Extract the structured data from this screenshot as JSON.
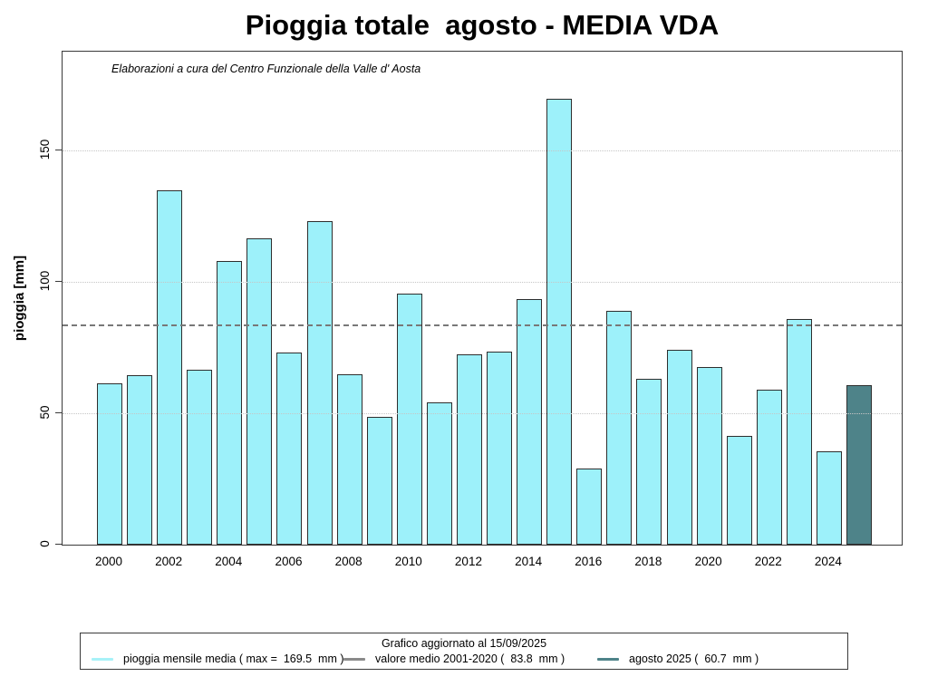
{
  "title": "Pioggia totale  agosto - MEDIA VDA",
  "subtitle": "Elaborazioni a cura del Centro Funzionale della Valle d' Aosta",
  "chart_data": {
    "type": "bar",
    "title": "Pioggia totale  agosto - MEDIA VDA",
    "subtitle": "Elaborazioni a cura del Centro Funzionale della Valle d' Aosta",
    "categories": [
      2000,
      2001,
      2002,
      2003,
      2004,
      2005,
      2006,
      2007,
      2008,
      2009,
      2010,
      2011,
      2012,
      2013,
      2014,
      2015,
      2016,
      2017,
      2018,
      2019,
      2020,
      2021,
      2022,
      2023,
      2024,
      2025
    ],
    "values": [
      61.5,
      64.5,
      135,
      66.5,
      108,
      116.5,
      73,
      123,
      65,
      48.5,
      95.5,
      54,
      72.5,
      73.5,
      93.5,
      169.5,
      29,
      89,
      63,
      74,
      67.5,
      41.5,
      59,
      86,
      35.5,
      60.7
    ],
    "highlight_category": 2025,
    "highlight_value": 60.7,
    "max_value": 169.5,
    "reference_line_value": 83.8,
    "reference_line_label": "valore medio 2001-2020",
    "xlabel": "",
    "ylabel": "pioggia [mm]",
    "ylim": [
      0,
      187.6
    ],
    "yticks": [
      0,
      50,
      100,
      150
    ],
    "x_tick_labels": [
      "2000",
      "2002",
      "2004",
      "2006",
      "2008",
      "2010",
      "2012",
      "2014",
      "2016",
      "2018",
      "2020",
      "2022",
      "2024"
    ],
    "grid": "dotted horizontal at yticks",
    "legend_position": "bottom",
    "colors": {
      "bar_fill": "#9df1fa",
      "bar_border": "#2e2e2e",
      "highlight_fill": "#4e8389",
      "reference_line": "#787878",
      "grid_line": "#c6c6c6"
    }
  },
  "legend": {
    "title": "Grafico aggiornato al 15/09/2025",
    "entries": [
      {
        "label": "pioggia mensile media ( max =  169.5  mm )",
        "color": "#a8f2f8",
        "swatch": "line"
      },
      {
        "label": "valore medio 2001-2020 (  83.8  mm )",
        "color": "#8a8a8a",
        "swatch": "line"
      },
      {
        "label": "agosto 2025 (  60.7  mm )",
        "color": "#4e8389",
        "swatch": "line"
      }
    ]
  }
}
